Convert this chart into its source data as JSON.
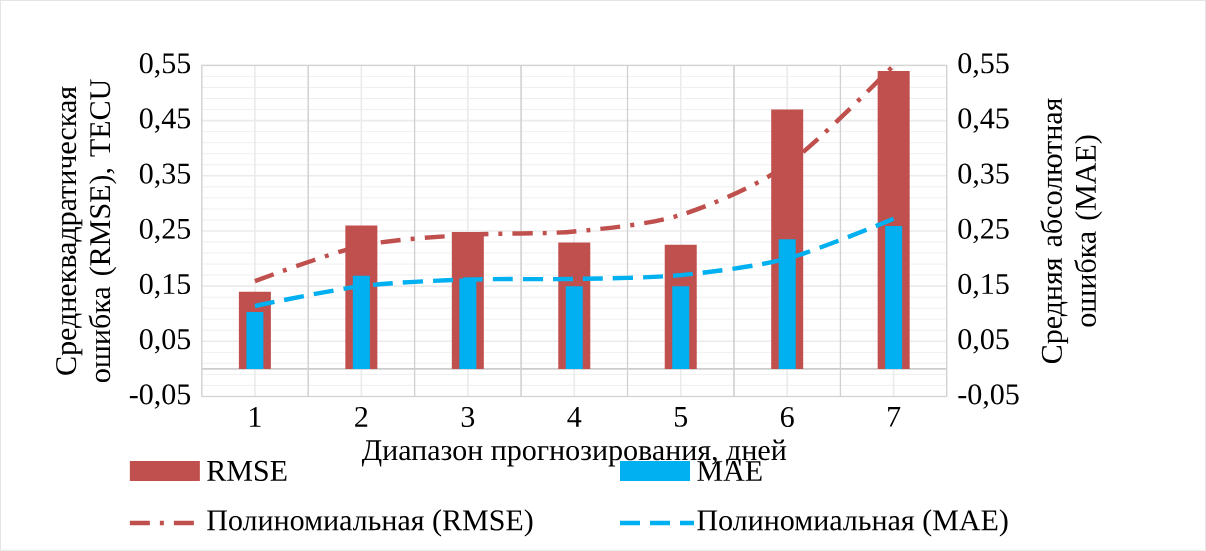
{
  "chart_data": {
    "type": "bar",
    "categories": [
      "1",
      "2",
      "3",
      "4",
      "5",
      "6",
      "7"
    ],
    "xlabel": "Диапазон прогнозирования, дней",
    "ylabel": "Среднеквадратическая ошибка (RMSE), TECU",
    "y2label": "Средняя абсолютная ошибка (MAE)",
    "ylim": [
      -0.05,
      0.55
    ],
    "yticks": [
      {
        "value": -0.05,
        "label": "-0,05"
      },
      {
        "value": 0.05,
        "label": "0,05"
      },
      {
        "value": 0.15,
        "label": "0,15"
      },
      {
        "value": 0.25,
        "label": "0,25"
      },
      {
        "value": 0.35,
        "label": "0,35"
      },
      {
        "value": 0.45,
        "label": "0,45"
      },
      {
        "value": 0.55,
        "label": "0,55"
      }
    ],
    "y2lim": [
      -0.05,
      0.55
    ],
    "y2ticks": [
      {
        "value": -0.05,
        "label": "-0,05"
      },
      {
        "value": 0.05,
        "label": "0,05"
      },
      {
        "value": 0.15,
        "label": "0,15"
      },
      {
        "value": 0.25,
        "label": "0,25"
      },
      {
        "value": 0.35,
        "label": "0,35"
      },
      {
        "value": 0.45,
        "label": "0,45"
      },
      {
        "value": 0.55,
        "label": "0,55"
      }
    ],
    "grid": true,
    "legend": "bottom",
    "series": [
      {
        "name": "RMSE",
        "color": "#c0504d",
        "values": [
          0.14,
          0.26,
          0.248,
          0.229,
          0.225,
          0.47,
          0.54
        ]
      },
      {
        "name": "MAE",
        "axis": "y2",
        "color": "#00b0f0",
        "values": [
          0.103,
          0.169,
          0.164,
          0.15,
          0.15,
          0.235,
          0.259
        ]
      },
      {
        "name": "Полиномиальная (RMSE)",
        "type": "line",
        "line_style": "dashdot",
        "color": "#c0504d",
        "values": [
          0.159,
          0.223,
          0.243,
          0.249,
          0.279,
          0.37,
          0.55
        ]
      },
      {
        "name": "Полиномиальная (MAE)",
        "type": "line",
        "axis": "y2",
        "line_style": "dashed",
        "color": "#00b0f0",
        "values": [
          0.114,
          0.15,
          0.162,
          0.163,
          0.17,
          0.2,
          0.272
        ]
      }
    ]
  }
}
